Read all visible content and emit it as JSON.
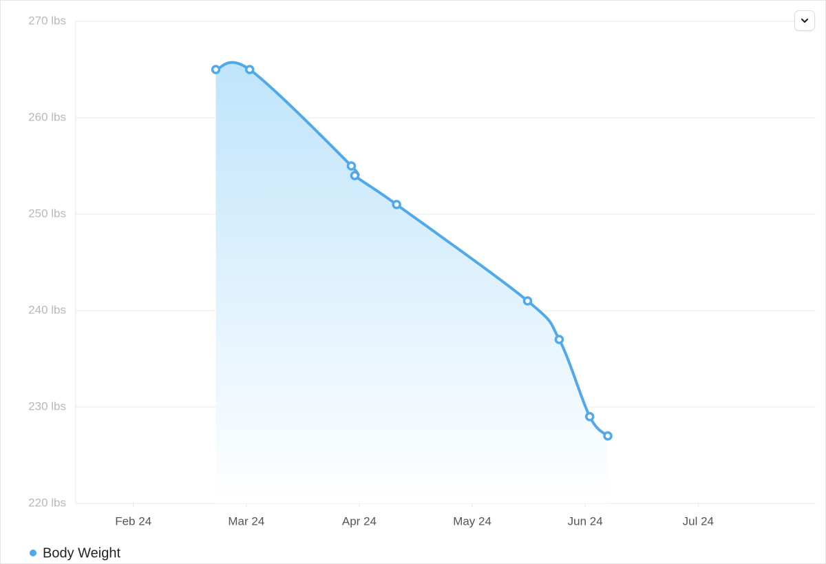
{
  "chart_data": {
    "type": "area",
    "x": [
      2.73,
      3.03,
      3.93,
      3.96,
      4.33,
      5.49,
      5.77,
      6.04,
      6.2
    ],
    "series": [
      {
        "name": "Body Weight",
        "color": "#4fa9ea",
        "values": [
          265,
          265,
          255,
          254,
          251,
          241,
          237,
          229,
          227
        ]
      }
    ],
    "xlim": [
      1.49,
      8.04
    ],
    "xticks": [
      {
        "value": 2,
        "label": "Feb 24"
      },
      {
        "value": 3,
        "label": "Mar 24"
      },
      {
        "value": 4,
        "label": "Apr 24"
      },
      {
        "value": 5,
        "label": "May 24"
      },
      {
        "value": 6,
        "label": "Jun 24"
      },
      {
        "value": 7,
        "label": "Jul 24"
      }
    ],
    "ylim": [
      220,
      270
    ],
    "yticks": [
      {
        "value": 220,
        "label": "220 lbs"
      },
      {
        "value": 230,
        "label": "230 lbs"
      },
      {
        "value": 240,
        "label": "240 lbs"
      },
      {
        "value": 250,
        "label": "250 lbs"
      },
      {
        "value": 260,
        "label": "260 lbs"
      },
      {
        "value": 270,
        "label": "270 lbs"
      }
    ],
    "grid": true,
    "legend": "bottom-left"
  }
}
